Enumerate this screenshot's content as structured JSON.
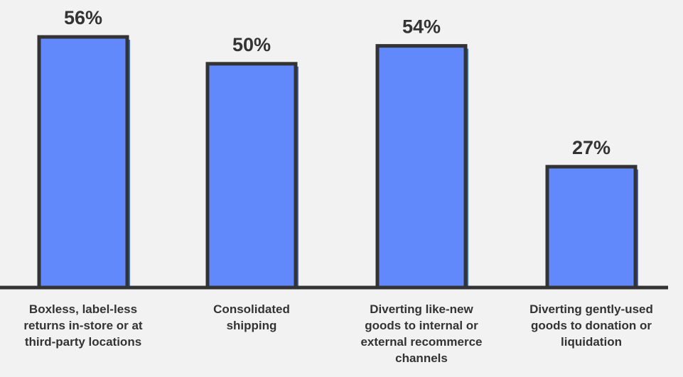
{
  "chart_data": {
    "type": "bar",
    "categories": [
      [
        "Boxless, label-less",
        "returns in-store or at",
        "third-party locations"
      ],
      [
        "Consolidated",
        "shipping"
      ],
      [
        "Diverting like-new",
        "goods to internal or",
        "external recommerce",
        "channels"
      ],
      [
        "Diverting gently-used",
        "goods to donation or",
        "liquidation"
      ]
    ],
    "values": [
      56,
      50,
      54,
      27
    ],
    "value_labels": [
      "56%",
      "50%",
      "54%",
      "27%"
    ],
    "title": "",
    "xlabel": "",
    "ylabel": "",
    "ylim": [
      0,
      56
    ],
    "grid": false,
    "legend": "none"
  },
  "colors": {
    "background": "#f2f2f2",
    "bar_fill": "#6189fb",
    "bar_shadow": "#3f6fe6",
    "bar_outline": "#333333",
    "axis": "#333333",
    "text": "#333333"
  }
}
